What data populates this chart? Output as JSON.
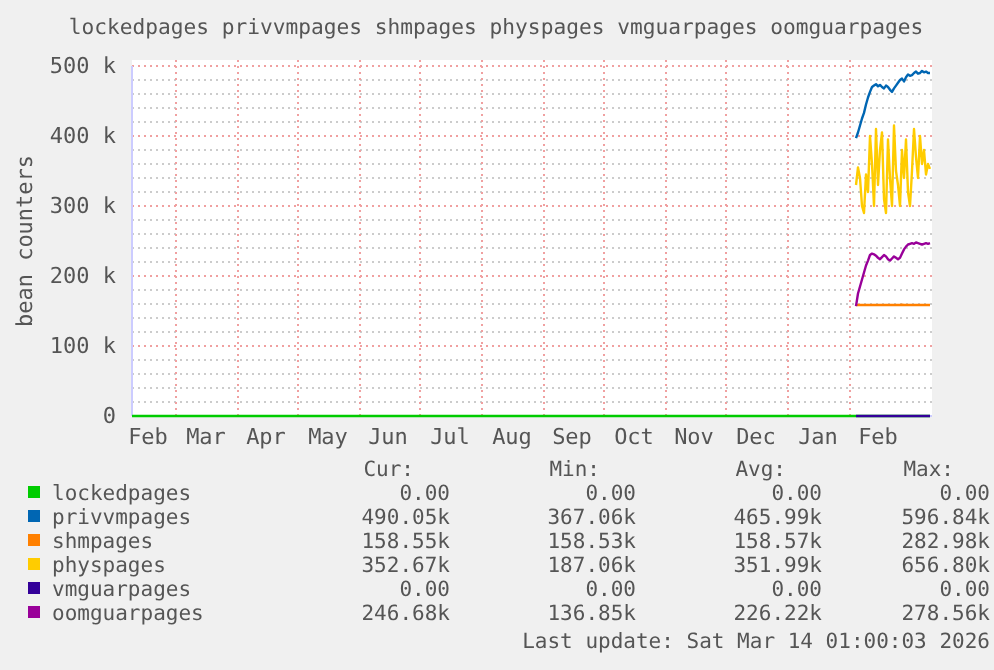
{
  "chart_data": {
    "type": "line",
    "title": "lockedpages privvmpages shmpages physpages vmguarpages oomguarpages",
    "ylabel": "bean counters",
    "x": [
      "2026-02-04",
      "2026-02-05",
      "2026-02-06",
      "2026-02-07",
      "2026-02-08",
      "2026-02-09",
      "2026-02-10",
      "2026-02-11",
      "2026-02-12",
      "2026-02-13",
      "2026-02-14",
      "2026-02-15",
      "2026-02-16",
      "2026-02-17",
      "2026-02-18",
      "2026-02-19",
      "2026-02-20",
      "2026-02-21",
      "2026-02-22",
      "2026-02-23",
      "2026-02-24",
      "2026-02-25",
      "2026-02-26",
      "2026-02-27",
      "2026-02-28",
      "2026-03-01",
      "2026-03-02",
      "2026-03-03",
      "2026-03-04",
      "2026-03-05",
      "2026-03-06",
      "2026-03-07",
      "2026-03-08",
      "2026-03-09",
      "2026-03-10",
      "2026-03-11",
      "2026-03-12",
      "2026-03-13"
    ],
    "series": [
      {
        "name": "lockedpages",
        "color": "#00cc00",
        "x": [
          "2025-02-07",
          "2026-03-13"
        ],
        "values": [
          0,
          0
        ]
      },
      {
        "name": "privvmpages",
        "color": "#0066b3",
        "values": [
          397000,
          405000,
          415000,
          425000,
          433000,
          445000,
          455000,
          463000,
          470000,
          472000,
          474000,
          471000,
          473000,
          470000,
          468000,
          472000,
          470000,
          466000,
          463000,
          468000,
          472000,
          476000,
          480000,
          482000,
          478000,
          484000,
          488000,
          486000,
          487000,
          490000,
          492000,
          489000,
          490000,
          493000,
          491000,
          492000,
          490000,
          490000
        ]
      },
      {
        "name": "shmpages",
        "color": "#ff8000",
        "values": [
          158500,
          158500,
          158500,
          158500,
          158500,
          158500,
          158500,
          158500,
          158500,
          158500,
          158500,
          158500,
          158500,
          158500,
          158500,
          158500,
          158500,
          158500,
          158500,
          158500,
          158500,
          158500,
          158500,
          159000,
          158500,
          158500,
          158500,
          158500,
          158500,
          158500,
          158500,
          158500,
          158500,
          158500,
          158500,
          158500,
          158500,
          158500
        ]
      },
      {
        "name": "physpages",
        "color": "#ffcc00",
        "values": [
          330000,
          355000,
          340000,
          300000,
          290000,
          345000,
          320000,
          400000,
          360000,
          300000,
          410000,
          330000,
          380000,
          405000,
          310000,
          290000,
          395000,
          340000,
          300000,
          415000,
          350000,
          330000,
          300000,
          380000,
          340000,
          395000,
          320000,
          300000,
          350000,
          410000,
          370000,
          340000,
          400000,
          360000,
          380000,
          345000,
          360000,
          353000
        ]
      },
      {
        "name": "vmguarpages",
        "color": "#330099",
        "x": [
          "2026-02-04",
          "2026-03-13"
        ],
        "values": [
          0,
          0
        ]
      },
      {
        "name": "oomguarpages",
        "color": "#990099",
        "values": [
          157000,
          175000,
          185000,
          195000,
          205000,
          215000,
          222000,
          230000,
          232000,
          231000,
          229000,
          226000,
          224000,
          227000,
          230000,
          228000,
          224000,
          222000,
          225000,
          228000,
          226000,
          224000,
          226000,
          232000,
          238000,
          242000,
          245000,
          246000,
          247000,
          246000,
          248000,
          247000,
          246000,
          245000,
          246000,
          247000,
          246000,
          247000
        ]
      }
    ],
    "xlim": [
      "2025-02-07",
      "2026-03-14"
    ],
    "xticks": [
      {
        "value": "2025-02-15",
        "label": "Feb"
      },
      {
        "value": "2025-03-01",
        "label": null
      },
      {
        "value": "2025-03-16",
        "label": "Mar"
      },
      {
        "value": "2025-04-01",
        "label": null
      },
      {
        "value": "2025-04-15",
        "label": "Apr"
      },
      {
        "value": "2025-05-01",
        "label": null
      },
      {
        "value": "2025-05-16",
        "label": "May"
      },
      {
        "value": "2025-06-01",
        "label": null
      },
      {
        "value": "2025-06-15",
        "label": "Jun"
      },
      {
        "value": "2025-07-01",
        "label": null
      },
      {
        "value": "2025-07-16",
        "label": "Jul"
      },
      {
        "value": "2025-08-01",
        "label": null
      },
      {
        "value": "2025-08-16",
        "label": "Aug"
      },
      {
        "value": "2025-09-01",
        "label": null
      },
      {
        "value": "2025-09-15",
        "label": "Sep"
      },
      {
        "value": "2025-10-01",
        "label": null
      },
      {
        "value": "2025-10-16",
        "label": "Oct"
      },
      {
        "value": "2025-11-01",
        "label": null
      },
      {
        "value": "2025-11-15",
        "label": "Nov"
      },
      {
        "value": "2025-12-01",
        "label": null
      },
      {
        "value": "2025-12-16",
        "label": "Dec"
      },
      {
        "value": "2026-01-01",
        "label": null
      },
      {
        "value": "2026-01-16",
        "label": "Jan"
      },
      {
        "value": "2026-02-01",
        "label": null
      },
      {
        "value": "2026-02-15",
        "label": "Feb"
      }
    ],
    "ylim": [
      0,
      500000
    ],
    "yticks": [
      {
        "value": 0,
        "label": "0"
      },
      {
        "value": 20000,
        "label": null
      },
      {
        "value": 40000,
        "label": null
      },
      {
        "value": 60000,
        "label": null
      },
      {
        "value": 80000,
        "label": null
      },
      {
        "value": 100000,
        "label": "100 k"
      },
      {
        "value": 120000,
        "label": null
      },
      {
        "value": 140000,
        "label": null
      },
      {
        "value": 160000,
        "label": null
      },
      {
        "value": 180000,
        "label": null
      },
      {
        "value": 200000,
        "label": "200 k"
      },
      {
        "value": 220000,
        "label": null
      },
      {
        "value": 240000,
        "label": null
      },
      {
        "value": 260000,
        "label": null
      },
      {
        "value": 280000,
        "label": null
      },
      {
        "value": 300000,
        "label": "300 k"
      },
      {
        "value": 320000,
        "label": null
      },
      {
        "value": 340000,
        "label": null
      },
      {
        "value": 360000,
        "label": null
      },
      {
        "value": 380000,
        "label": null
      },
      {
        "value": 400000,
        "label": "400 k"
      },
      {
        "value": 420000,
        "label": null
      },
      {
        "value": 440000,
        "label": null
      },
      {
        "value": 460000,
        "label": null
      },
      {
        "value": 480000,
        "label": null
      },
      {
        "value": 500000,
        "label": "500 k"
      }
    ],
    "grid": true,
    "legend": "bottom",
    "marker": "none",
    "line_style": "solid",
    "annotations": [
      "Cur:",
      "Min:",
      "Avg:",
      "Max:",
      "0.00",
      "0.00",
      "0.00",
      "0.00",
      "490.05k",
      "367.06k",
      "465.99k",
      "596.84k",
      "158.55k",
      "158.53k",
      "158.57k",
      "282.98k",
      "352.67k",
      "187.06k",
      "351.99k",
      "656.80k",
      "0.00",
      "0.00",
      "0.00",
      "0.00",
      "246.68k",
      "136.85k",
      "226.22k",
      "278.56k",
      "Last update: Sat Mar 14 01:00:03 2026"
    ]
  }
}
